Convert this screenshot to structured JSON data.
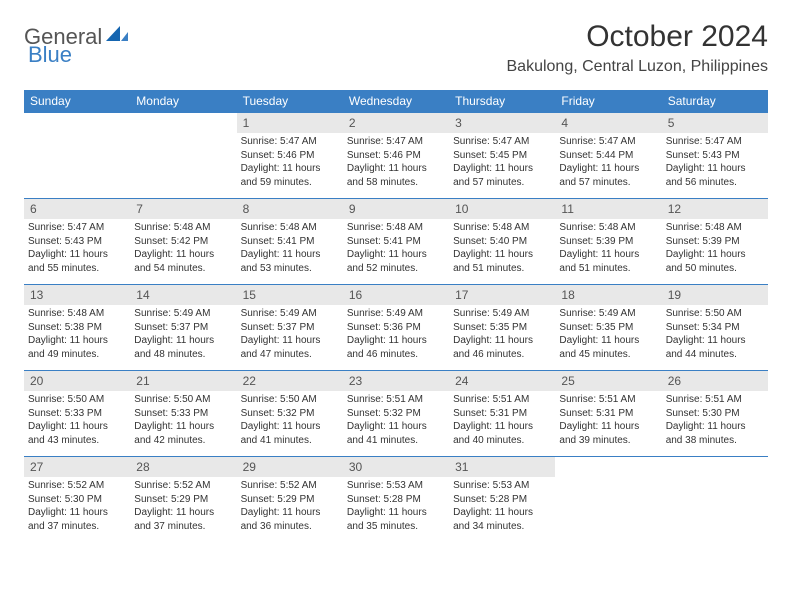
{
  "brand": {
    "general": "General",
    "blue": "Blue"
  },
  "title": "October 2024",
  "location": "Bakulong, Central Luzon, Philippines",
  "colors": {
    "header_bg": "#3a7fc4",
    "header_fg": "#ffffff",
    "daynum_bg": "#e8e8e8",
    "border": "#3a7fc4",
    "text": "#333333",
    "background": "#ffffff"
  },
  "day_headers": [
    "Sunday",
    "Monday",
    "Tuesday",
    "Wednesday",
    "Thursday",
    "Friday",
    "Saturday"
  ],
  "weeks": [
    [
      {
        "day": "",
        "lines": []
      },
      {
        "day": "",
        "lines": []
      },
      {
        "day": "1",
        "lines": [
          "Sunrise: 5:47 AM",
          "Sunset: 5:46 PM",
          "Daylight: 11 hours and 59 minutes."
        ]
      },
      {
        "day": "2",
        "lines": [
          "Sunrise: 5:47 AM",
          "Sunset: 5:46 PM",
          "Daylight: 11 hours and 58 minutes."
        ]
      },
      {
        "day": "3",
        "lines": [
          "Sunrise: 5:47 AM",
          "Sunset: 5:45 PM",
          "Daylight: 11 hours and 57 minutes."
        ]
      },
      {
        "day": "4",
        "lines": [
          "Sunrise: 5:47 AM",
          "Sunset: 5:44 PM",
          "Daylight: 11 hours and 57 minutes."
        ]
      },
      {
        "day": "5",
        "lines": [
          "Sunrise: 5:47 AM",
          "Sunset: 5:43 PM",
          "Daylight: 11 hours and 56 minutes."
        ]
      }
    ],
    [
      {
        "day": "6",
        "lines": [
          "Sunrise: 5:47 AM",
          "Sunset: 5:43 PM",
          "Daylight: 11 hours and 55 minutes."
        ]
      },
      {
        "day": "7",
        "lines": [
          "Sunrise: 5:48 AM",
          "Sunset: 5:42 PM",
          "Daylight: 11 hours and 54 minutes."
        ]
      },
      {
        "day": "8",
        "lines": [
          "Sunrise: 5:48 AM",
          "Sunset: 5:41 PM",
          "Daylight: 11 hours and 53 minutes."
        ]
      },
      {
        "day": "9",
        "lines": [
          "Sunrise: 5:48 AM",
          "Sunset: 5:41 PM",
          "Daylight: 11 hours and 52 minutes."
        ]
      },
      {
        "day": "10",
        "lines": [
          "Sunrise: 5:48 AM",
          "Sunset: 5:40 PM",
          "Daylight: 11 hours and 51 minutes."
        ]
      },
      {
        "day": "11",
        "lines": [
          "Sunrise: 5:48 AM",
          "Sunset: 5:39 PM",
          "Daylight: 11 hours and 51 minutes."
        ]
      },
      {
        "day": "12",
        "lines": [
          "Sunrise: 5:48 AM",
          "Sunset: 5:39 PM",
          "Daylight: 11 hours and 50 minutes."
        ]
      }
    ],
    [
      {
        "day": "13",
        "lines": [
          "Sunrise: 5:48 AM",
          "Sunset: 5:38 PM",
          "Daylight: 11 hours and 49 minutes."
        ]
      },
      {
        "day": "14",
        "lines": [
          "Sunrise: 5:49 AM",
          "Sunset: 5:37 PM",
          "Daylight: 11 hours and 48 minutes."
        ]
      },
      {
        "day": "15",
        "lines": [
          "Sunrise: 5:49 AM",
          "Sunset: 5:37 PM",
          "Daylight: 11 hours and 47 minutes."
        ]
      },
      {
        "day": "16",
        "lines": [
          "Sunrise: 5:49 AM",
          "Sunset: 5:36 PM",
          "Daylight: 11 hours and 46 minutes."
        ]
      },
      {
        "day": "17",
        "lines": [
          "Sunrise: 5:49 AM",
          "Sunset: 5:35 PM",
          "Daylight: 11 hours and 46 minutes."
        ]
      },
      {
        "day": "18",
        "lines": [
          "Sunrise: 5:49 AM",
          "Sunset: 5:35 PM",
          "Daylight: 11 hours and 45 minutes."
        ]
      },
      {
        "day": "19",
        "lines": [
          "Sunrise: 5:50 AM",
          "Sunset: 5:34 PM",
          "Daylight: 11 hours and 44 minutes."
        ]
      }
    ],
    [
      {
        "day": "20",
        "lines": [
          "Sunrise: 5:50 AM",
          "Sunset: 5:33 PM",
          "Daylight: 11 hours and 43 minutes."
        ]
      },
      {
        "day": "21",
        "lines": [
          "Sunrise: 5:50 AM",
          "Sunset: 5:33 PM",
          "Daylight: 11 hours and 42 minutes."
        ]
      },
      {
        "day": "22",
        "lines": [
          "Sunrise: 5:50 AM",
          "Sunset: 5:32 PM",
          "Daylight: 11 hours and 41 minutes."
        ]
      },
      {
        "day": "23",
        "lines": [
          "Sunrise: 5:51 AM",
          "Sunset: 5:32 PM",
          "Daylight: 11 hours and 41 minutes."
        ]
      },
      {
        "day": "24",
        "lines": [
          "Sunrise: 5:51 AM",
          "Sunset: 5:31 PM",
          "Daylight: 11 hours and 40 minutes."
        ]
      },
      {
        "day": "25",
        "lines": [
          "Sunrise: 5:51 AM",
          "Sunset: 5:31 PM",
          "Daylight: 11 hours and 39 minutes."
        ]
      },
      {
        "day": "26",
        "lines": [
          "Sunrise: 5:51 AM",
          "Sunset: 5:30 PM",
          "Daylight: 11 hours and 38 minutes."
        ]
      }
    ],
    [
      {
        "day": "27",
        "lines": [
          "Sunrise: 5:52 AM",
          "Sunset: 5:30 PM",
          "Daylight: 11 hours and 37 minutes."
        ]
      },
      {
        "day": "28",
        "lines": [
          "Sunrise: 5:52 AM",
          "Sunset: 5:29 PM",
          "Daylight: 11 hours and 37 minutes."
        ]
      },
      {
        "day": "29",
        "lines": [
          "Sunrise: 5:52 AM",
          "Sunset: 5:29 PM",
          "Daylight: 11 hours and 36 minutes."
        ]
      },
      {
        "day": "30",
        "lines": [
          "Sunrise: 5:53 AM",
          "Sunset: 5:28 PM",
          "Daylight: 11 hours and 35 minutes."
        ]
      },
      {
        "day": "31",
        "lines": [
          "Sunrise: 5:53 AM",
          "Sunset: 5:28 PM",
          "Daylight: 11 hours and 34 minutes."
        ]
      },
      {
        "day": "",
        "lines": []
      },
      {
        "day": "",
        "lines": []
      }
    ]
  ]
}
